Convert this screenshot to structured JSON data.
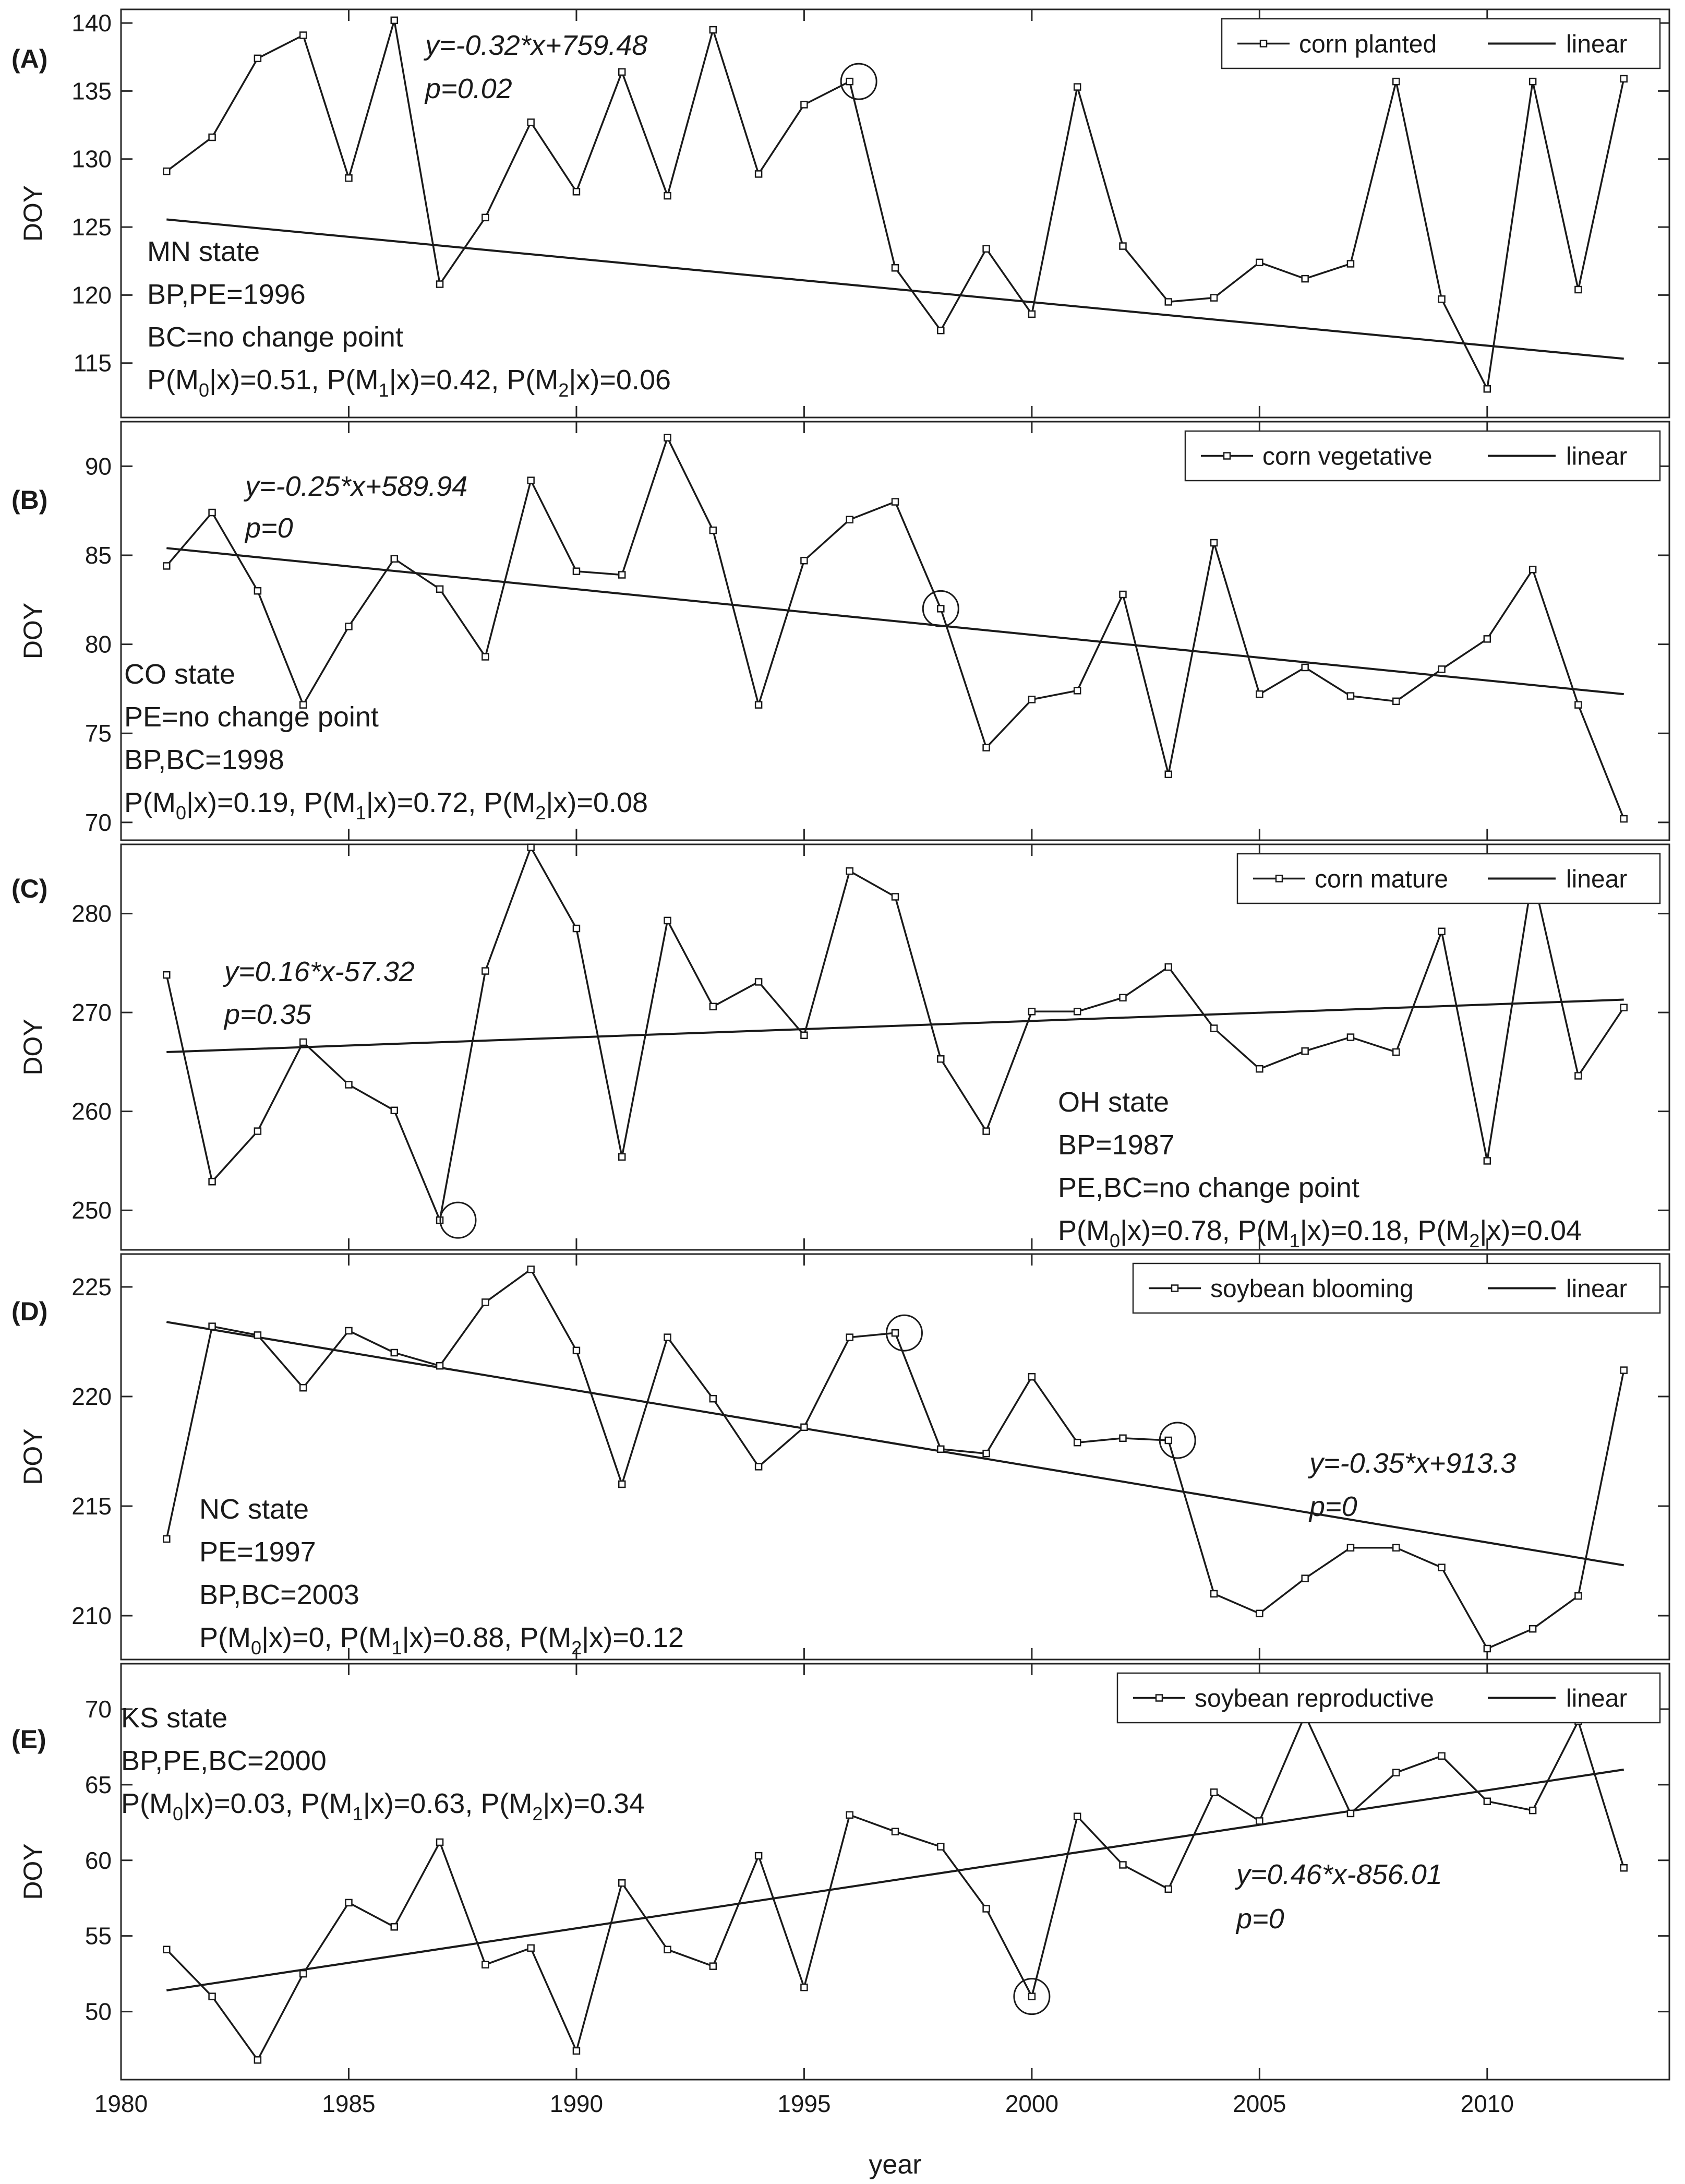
{
  "chart_data": {
    "type": "line",
    "xlabel": "year",
    "xlim": [
      1980,
      2014
    ],
    "xticks": [
      1980,
      1985,
      1990,
      1995,
      2000,
      2005,
      2010
    ],
    "years": [
      1981,
      1982,
      1983,
      1984,
      1985,
      1986,
      1987,
      1988,
      1989,
      1990,
      1991,
      1992,
      1993,
      1994,
      1995,
      1996,
      1997,
      1998,
      1999,
      2000,
      2001,
      2002,
      2003,
      2004,
      2005,
      2006,
      2007,
      2008,
      2009,
      2010,
      2011,
      2012,
      2013
    ],
    "panels": [
      {
        "label": "(A)",
        "ylabel": "DOY",
        "ylim": [
          111,
          141
        ],
        "yticks": [
          115,
          120,
          125,
          130,
          135,
          140
        ],
        "series_name": "corn planted",
        "fit_name": "linear",
        "values": [
          129.1,
          131.6,
          137.4,
          139.1,
          128.6,
          140.2,
          120.8,
          125.7,
          132.7,
          127.6,
          136.4,
          127.3,
          139.5,
          128.9,
          134.0,
          135.7,
          122.0,
          117.4,
          123.4,
          118.6,
          135.3,
          123.6,
          119.5,
          119.8,
          122.4,
          121.2,
          122.3,
          135.7,
          119.7,
          113.1,
          135.7,
          120.4,
          135.9
        ],
        "fit_slope": -0.32,
        "fit_intercept": 759.48,
        "equation": "y=-0.32*x+759.48",
        "pvalue": "p=0.02",
        "change_points": [
          1996.2
        ],
        "state": "MN state",
        "info": [
          "BP,PE=1996",
          "BC=no change point"
        ],
        "posterior": [
          "P(M",
          "0",
          "|x)=0.51, P(M",
          "1",
          "|x)=0.42, P(M",
          "2",
          "|x)=0.06"
        ]
      },
      {
        "label": "(B)",
        "ylabel": "DOY",
        "ylim": [
          69,
          92.5
        ],
        "yticks": [
          70,
          75,
          80,
          85,
          90
        ],
        "series_name": "corn vegetative",
        "fit_name": "linear",
        "values": [
          84.4,
          87.4,
          83.0,
          76.6,
          81.0,
          84.8,
          83.1,
          79.3,
          89.2,
          84.1,
          83.9,
          91.6,
          86.4,
          76.6,
          84.7,
          87.0,
          88.0,
          82.0,
          74.2,
          76.9,
          77.4,
          82.8,
          72.7,
          85.7,
          77.2,
          78.7,
          77.1,
          76.8,
          78.6,
          80.3,
          84.2,
          76.6,
          70.2
        ],
        "fit_slope": -0.25,
        "fit_intercept": 589.94,
        "fit_endpoints": [
          85.4,
          77.2
        ],
        "equation": "y=-0.25*x+589.94",
        "pvalue": "p=0",
        "change_points": [
          1998.0
        ],
        "state": "CO state",
        "info": [
          "PE=no change point",
          "BP,BC=1998"
        ],
        "posterior": [
          "P(M",
          "0",
          "|x)=0.19, P(M",
          "1",
          "|x)=0.72, P(M",
          "2",
          "|x)=0.08"
        ]
      },
      {
        "label": "(C)",
        "ylabel": "DOY",
        "ylim": [
          246,
          287
        ],
        "yticks": [
          250,
          260,
          270,
          280
        ],
        "series_name": "corn mature",
        "fit_name": "linear",
        "values": [
          273.8,
          252.9,
          258.0,
          267.0,
          262.7,
          260.1,
          249.0,
          274.2,
          286.7,
          278.5,
          255.4,
          279.3,
          270.6,
          273.1,
          267.7,
          284.3,
          281.7,
          265.3,
          258.0,
          270.1,
          270.1,
          271.5,
          274.6,
          268.4,
          264.3,
          266.1,
          267.5,
          266.0,
          278.2,
          255.0,
          283.9,
          263.6,
          270.5
        ],
        "fit_slope": 0.16,
        "fit_intercept": -57.32,
        "fit_endpoints": [
          266.0,
          271.3
        ],
        "equation": "y=0.16*x-57.32",
        "pvalue": "p=0.35",
        "change_points": [
          1987.4
        ],
        "state": "OH state",
        "info": [
          "BP=1987",
          "PE,BC=no change point"
        ],
        "posterior": [
          "P(M",
          "0",
          "|x)=0.78, P(M",
          "1",
          "|x)=0.18, P(M",
          "2",
          "|x)=0.04"
        ]
      },
      {
        "label": "(D)",
        "ylabel": "DOY",
        "ylim": [
          208,
          226.5
        ],
        "yticks": [
          210,
          215,
          220,
          225
        ],
        "series_name": "soybean blooming",
        "fit_name": "linear",
        "values": [
          213.5,
          223.2,
          222.8,
          220.4,
          223.0,
          222.0,
          221.4,
          224.3,
          225.8,
          222.1,
          216.0,
          222.7,
          219.9,
          216.8,
          218.6,
          222.7,
          222.9,
          217.6,
          217.4,
          220.9,
          217.9,
          218.1,
          218.0,
          211.0,
          210.1,
          211.7,
          213.1,
          213.1,
          212.2,
          208.5,
          209.4,
          210.9,
          221.2
        ],
        "fit_slope": -0.35,
        "fit_intercept": 913.3,
        "fit_endpoints": [
          223.4,
          212.3
        ],
        "equation": "y=-0.35*x+913.3",
        "pvalue": "p=0",
        "change_points": [
          1997.2,
          2003.2
        ],
        "state": "NC state",
        "info": [
          "PE=1997",
          "BP,BC=2003"
        ],
        "posterior": [
          "P(M",
          "0",
          "|x)=0, P(M",
          "1",
          "|x)=0.88, P(M",
          "2",
          "|x)=0.12"
        ]
      },
      {
        "label": "(E)",
        "ylabel": "DOY",
        "ylim": [
          45.5,
          73
        ],
        "yticks": [
          50,
          55,
          60,
          65,
          70
        ],
        "series_name": "soybean reproductive",
        "fit_name": "linear",
        "values": [
          54.1,
          51.0,
          46.8,
          52.5,
          57.2,
          55.6,
          61.2,
          53.1,
          54.2,
          47.4,
          58.5,
          54.1,
          53.0,
          60.3,
          51.6,
          63.0,
          61.9,
          60.9,
          56.8,
          51.0,
          62.9,
          59.7,
          58.1,
          64.5,
          62.6,
          69.6,
          63.1,
          65.8,
          66.9,
          63.9,
          63.3,
          69.2,
          59.5
        ],
        "fit_slope": 0.46,
        "fit_intercept": -856.01,
        "fit_endpoints": [
          51.4,
          66.0
        ],
        "equation": "y=0.46*x-856.01",
        "pvalue": "p=0",
        "change_points": [
          2000.0
        ],
        "state": "KS state",
        "info": [
          "BP,PE,BC=2000"
        ],
        "posterior": [
          "P(M",
          "0",
          "|x)=0.03, P(M",
          "1",
          "|x)=0.63, P(M",
          "2",
          "|x)=0.34"
        ]
      }
    ]
  }
}
